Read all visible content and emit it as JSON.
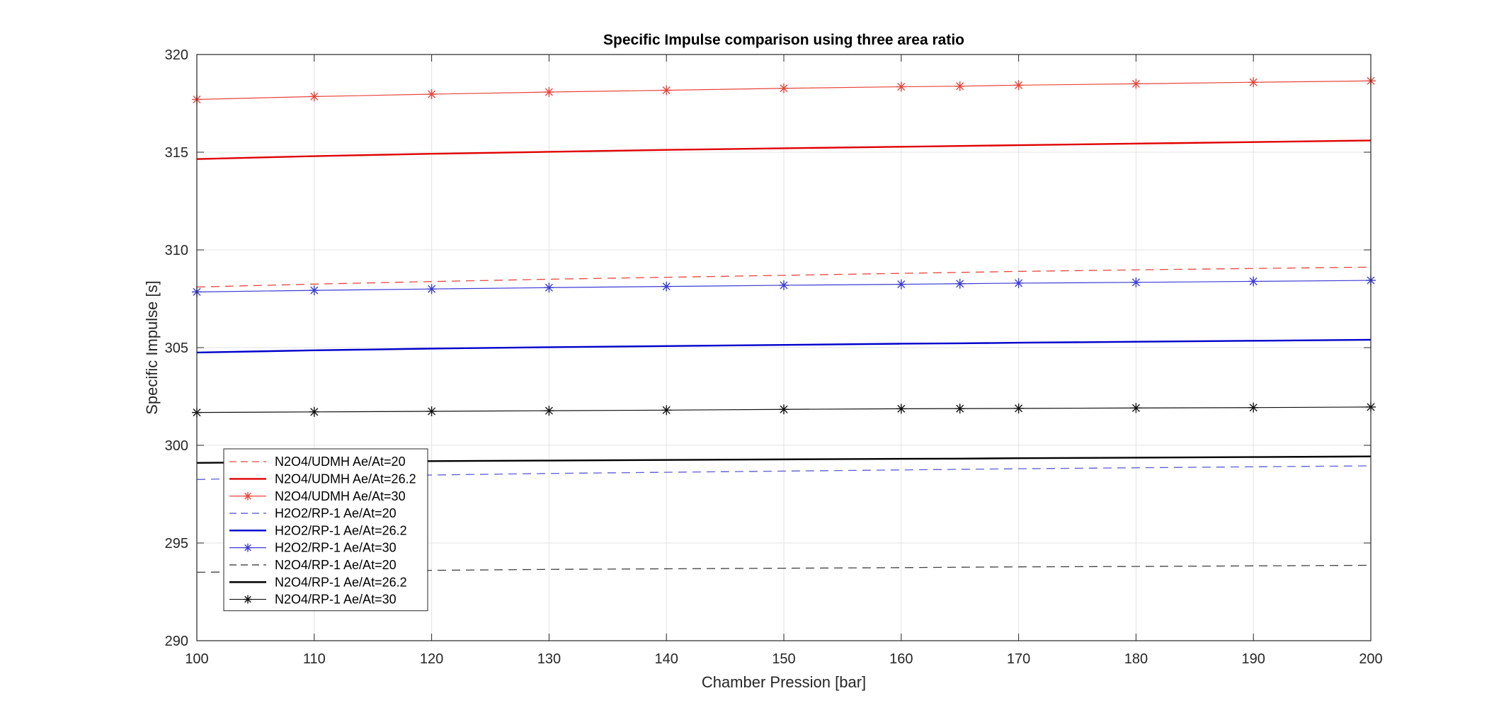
{
  "chart_data": {
    "type": "line",
    "title": "Specific Impulse comparison using three area ratio",
    "xlabel": "Chamber Pression [bar]",
    "ylabel": "Specific Impulse [s]",
    "xlim": [
      100,
      200
    ],
    "ylim": [
      290,
      320
    ],
    "xticks": [
      100,
      110,
      120,
      130,
      140,
      150,
      160,
      170,
      180,
      190,
      200
    ],
    "yticks": [
      290,
      295,
      300,
      305,
      310,
      315,
      320
    ],
    "grid": true,
    "legend_position": "bottom-left",
    "x": [
      100,
      110,
      120,
      130,
      140,
      150,
      160,
      165,
      170,
      180,
      190,
      200
    ],
    "series": [
      {
        "name": "N2O4/UDMH Ae/At=20",
        "color": "#e8453c",
        "style": "dashed",
        "marker": "none",
        "values": [
          308.1,
          308.25,
          308.38,
          308.5,
          308.6,
          308.7,
          308.8,
          308.85,
          308.9,
          308.98,
          309.05,
          309.12
        ]
      },
      {
        "name": "N2O4/UDMH Ae/At=26.2",
        "color": "#e00000",
        "style": "solid-thick",
        "marker": "none",
        "values": [
          314.65,
          314.8,
          314.92,
          315.02,
          315.12,
          315.2,
          315.28,
          315.32,
          315.36,
          315.44,
          315.52,
          315.6
        ]
      },
      {
        "name": "N2O4/UDMH Ae/At=30",
        "color": "#e8453c",
        "style": "solid-thin",
        "marker": "star",
        "values": [
          317.7,
          317.85,
          317.97,
          318.08,
          318.17,
          318.27,
          318.35,
          318.38,
          318.43,
          318.5,
          318.58,
          318.65
        ]
      },
      {
        "name": "H2O2/RP-1 Ae/At=20",
        "color": "#5b5bd6",
        "style": "dashed",
        "marker": "none",
        "values": [
          298.25,
          298.38,
          298.48,
          298.56,
          298.62,
          298.68,
          298.74,
          298.77,
          298.8,
          298.85,
          298.9,
          298.95
        ]
      },
      {
        "name": "H2O2/RP-1 Ae/At=26.2",
        "color": "#0000cc",
        "style": "solid-thick",
        "marker": "none",
        "values": [
          304.75,
          304.86,
          304.95,
          305.02,
          305.08,
          305.14,
          305.2,
          305.22,
          305.25,
          305.3,
          305.35,
          305.4
        ]
      },
      {
        "name": "H2O2/RP-1 Ae/At=30",
        "color": "#3b3bd6",
        "style": "solid-thin",
        "marker": "star",
        "values": [
          307.85,
          307.93,
          308.0,
          308.07,
          308.13,
          308.19,
          308.24,
          308.27,
          308.3,
          308.34,
          308.39,
          308.44
        ]
      },
      {
        "name": "N2O4/RP-1 Ae/At=20",
        "color": "#404040",
        "style": "dashed",
        "marker": "none",
        "values": [
          293.5,
          293.56,
          293.6,
          293.65,
          293.68,
          293.71,
          293.74,
          293.76,
          293.78,
          293.8,
          293.83,
          293.86
        ]
      },
      {
        "name": "N2O4/RP-1 Ae/At=26.2",
        "color": "#000000",
        "style": "solid-thick",
        "marker": "none",
        "values": [
          299.1,
          299.15,
          299.19,
          299.22,
          299.25,
          299.28,
          299.31,
          299.32,
          299.34,
          299.37,
          299.4,
          299.43
        ]
      },
      {
        "name": "N2O4/RP-1 Ae/At=30",
        "color": "#111111",
        "style": "solid-thin",
        "marker": "star",
        "values": [
          301.68,
          301.71,
          301.74,
          301.77,
          301.8,
          301.84,
          301.87,
          301.88,
          301.89,
          301.91,
          301.93,
          301.96
        ]
      }
    ]
  }
}
